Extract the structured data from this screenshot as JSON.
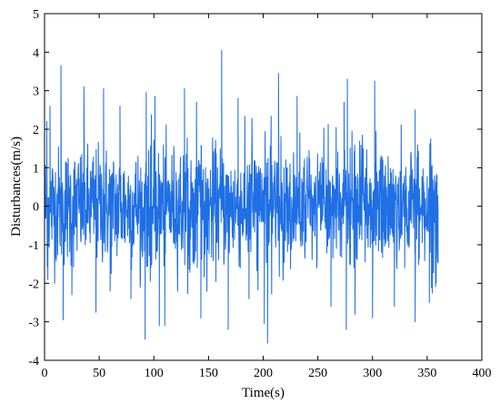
{
  "chart_data": {
    "type": "line",
    "title": "",
    "xlabel": "Time(s)",
    "ylabel": "Disturbances(m/s)",
    "xlim": [
      0,
      400
    ],
    "ylim": [
      -4,
      5
    ],
    "x_ticks": [
      0,
      50,
      100,
      150,
      200,
      250,
      300,
      350,
      400
    ],
    "y_ticks": [
      -4,
      -3,
      -2,
      -1,
      0,
      1,
      2,
      3,
      4,
      5
    ],
    "x_tick_labels": [
      "0",
      "50",
      "100",
      "150",
      "200",
      "250",
      "300",
      "350",
      "400"
    ],
    "y_tick_labels": [
      "-4",
      "-3",
      "-2",
      "-1",
      "0",
      "1",
      "2",
      "3",
      "4",
      "5"
    ],
    "grid": false,
    "series": [
      {
        "color": "#1f6fe5",
        "x_range": [
          0,
          360
        ],
        "sample_step": 0.25,
        "typical_band": [
          -1.6,
          1.6
        ],
        "peaks": [
          {
            "x": 2.0,
            "y": 2.2
          },
          {
            "x": 5.0,
            "y": 2.6
          },
          {
            "x": 15.0,
            "y": 3.65
          },
          {
            "x": 36.0,
            "y": 3.1
          },
          {
            "x": 54.0,
            "y": 3.05
          },
          {
            "x": 69.0,
            "y": 2.6
          },
          {
            "x": 93.0,
            "y": 2.95
          },
          {
            "x": 101.0,
            "y": 2.85
          },
          {
            "x": 128.0,
            "y": 3.05
          },
          {
            "x": 139.0,
            "y": 2.7
          },
          {
            "x": 162.0,
            "y": 4.05
          },
          {
            "x": 177.0,
            "y": 2.8
          },
          {
            "x": 214.0,
            "y": 3.45
          },
          {
            "x": 231.0,
            "y": 2.85
          },
          {
            "x": 274.0,
            "y": 2.7
          },
          {
            "x": 277.0,
            "y": 3.3
          },
          {
            "x": 302.0,
            "y": 3.25
          },
          {
            "x": 339.0,
            "y": 2.5
          }
        ],
        "troughs": [
          {
            "x": 3.0,
            "y": -1.9
          },
          {
            "x": 17.0,
            "y": -2.95
          },
          {
            "x": 25.0,
            "y": -2.3
          },
          {
            "x": 47.0,
            "y": -2.75
          },
          {
            "x": 60.0,
            "y": -2.2
          },
          {
            "x": 79.0,
            "y": -2.4
          },
          {
            "x": 92.0,
            "y": -3.45
          },
          {
            "x": 105.0,
            "y": -3.1
          },
          {
            "x": 110.0,
            "y": -3.1
          },
          {
            "x": 143.0,
            "y": -2.9
          },
          {
            "x": 168.0,
            "y": -3.2
          },
          {
            "x": 187.0,
            "y": -2.4
          },
          {
            "x": 201.0,
            "y": -3.05
          },
          {
            "x": 204.0,
            "y": -3.55
          },
          {
            "x": 262.0,
            "y": -2.6
          },
          {
            "x": 276.0,
            "y": -3.2
          },
          {
            "x": 284.0,
            "y": -2.8
          },
          {
            "x": 300.0,
            "y": -2.9
          },
          {
            "x": 320.0,
            "y": -2.6
          },
          {
            "x": 339.0,
            "y": -3.0
          },
          {
            "x": 352.0,
            "y": -2.5
          }
        ]
      }
    ]
  }
}
